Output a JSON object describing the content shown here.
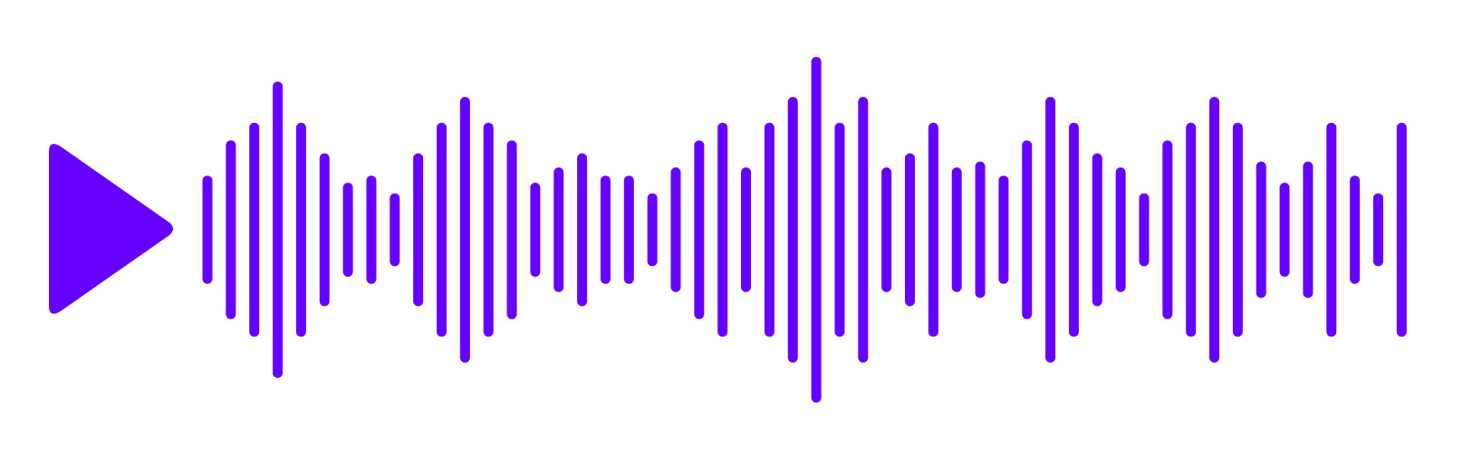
{
  "colors": {
    "background": "#ffffff",
    "accent": "#6600ff"
  },
  "play_button": {
    "icon": "play-icon"
  },
  "waveform": {
    "icon": "audio-waveform",
    "bar_levels": [
      0.46,
      0.76,
      0.91,
      1.26,
      0.91,
      0.65,
      0.4,
      0.46,
      0.31,
      0.65,
      0.91,
      1.13,
      0.91,
      0.76,
      0.4,
      0.53,
      0.65,
      0.46,
      0.46,
      0.31,
      0.53,
      0.76,
      0.91,
      0.53,
      0.91,
      1.13,
      1.47,
      0.91,
      1.13,
      0.53,
      0.65,
      0.91,
      0.53,
      0.58,
      0.46,
      0.76,
      1.13,
      0.91,
      0.65,
      0.53,
      0.31,
      0.76,
      0.91,
      1.13,
      0.91,
      0.58,
      0.4,
      0.58,
      0.91,
      0.46,
      0.31,
      0.91
    ]
  }
}
